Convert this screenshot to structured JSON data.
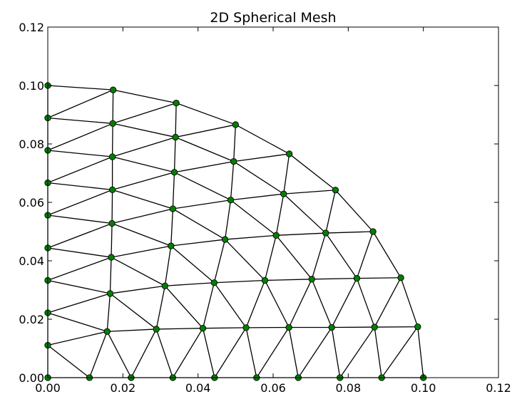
{
  "chart_data": {
    "type": "scatter",
    "title": "2D Spherical Mesh",
    "xlabel": "",
    "ylabel": "",
    "xlim": [
      0.0,
      0.12
    ],
    "ylim": [
      0.0,
      0.12
    ],
    "x_ticks": [
      "0.00",
      "0.02",
      "0.04",
      "0.06",
      "0.08",
      "0.10",
      "0.12"
    ],
    "y_ticks": [
      "0.00",
      "0.02",
      "0.04",
      "0.06",
      "0.08",
      "0.10",
      "0.12"
    ],
    "grid": false,
    "legend": "none",
    "colors": {
      "node": "#008000",
      "edge": "#000000",
      "frame": "#000000"
    },
    "nodes": [
      [
        0.0,
        0.0
      ],
      [
        0.0111,
        0.0
      ],
      [
        0.0222,
        0.0
      ],
      [
        0.0333,
        0.0
      ],
      [
        0.0444,
        0.0
      ],
      [
        0.0556,
        0.0
      ],
      [
        0.0667,
        0.0
      ],
      [
        0.0778,
        0.0
      ],
      [
        0.0889,
        0.0
      ],
      [
        0.1,
        0.0
      ],
      [
        0.0,
        0.0111
      ],
      [
        0.0158,
        0.0158
      ],
      [
        0.0289,
        0.0166
      ],
      [
        0.0413,
        0.0169
      ],
      [
        0.0528,
        0.0171
      ],
      [
        0.0642,
        0.0172
      ],
      [
        0.0756,
        0.0172
      ],
      [
        0.087,
        0.0173
      ],
      [
        0.0985,
        0.0174
      ],
      [
        0.0,
        0.0222
      ],
      [
        0.0166,
        0.0288
      ],
      [
        0.0312,
        0.0314
      ],
      [
        0.0443,
        0.0325
      ],
      [
        0.0578,
        0.0333
      ],
      [
        0.0703,
        0.0337
      ],
      [
        0.0823,
        0.034
      ],
      [
        0.094,
        0.0342
      ],
      [
        0.0,
        0.0333
      ],
      [
        0.0169,
        0.0412
      ],
      [
        0.0328,
        0.0451
      ],
      [
        0.0472,
        0.0473
      ],
      [
        0.0608,
        0.0487
      ],
      [
        0.074,
        0.0495
      ],
      [
        0.0866,
        0.05
      ],
      [
        0.0,
        0.0444
      ],
      [
        0.0171,
        0.0528
      ],
      [
        0.0333,
        0.0578
      ],
      [
        0.0487,
        0.0608
      ],
      [
        0.0628,
        0.0629
      ],
      [
        0.0766,
        0.0642
      ],
      [
        0.0,
        0.0556
      ],
      [
        0.0172,
        0.0643
      ],
      [
        0.0337,
        0.0703
      ],
      [
        0.0495,
        0.074
      ],
      [
        0.0643,
        0.0766
      ],
      [
        0.0,
        0.0667
      ],
      [
        0.0172,
        0.0756
      ],
      [
        0.034,
        0.0823
      ],
      [
        0.05,
        0.0866
      ],
      [
        0.0,
        0.0778
      ],
      [
        0.0173,
        0.087
      ],
      [
        0.0342,
        0.094
      ],
      [
        0.0,
        0.0889
      ],
      [
        0.0174,
        0.0985
      ],
      [
        0.0,
        0.1
      ]
    ],
    "rows": [
      [
        0,
        1,
        2,
        3,
        4,
        5,
        6,
        7,
        8,
        9
      ],
      [
        10,
        11,
        12,
        13,
        14,
        15,
        16,
        17,
        18
      ],
      [
        19,
        20,
        21,
        22,
        23,
        24,
        25,
        26
      ],
      [
        27,
        28,
        29,
        30,
        31,
        32,
        33
      ],
      [
        34,
        35,
        36,
        37,
        38,
        39
      ],
      [
        40,
        41,
        42,
        43,
        44
      ],
      [
        45,
        46,
        47,
        48
      ],
      [
        49,
        50,
        51
      ],
      [
        52,
        53
      ],
      [
        54
      ]
    ]
  }
}
